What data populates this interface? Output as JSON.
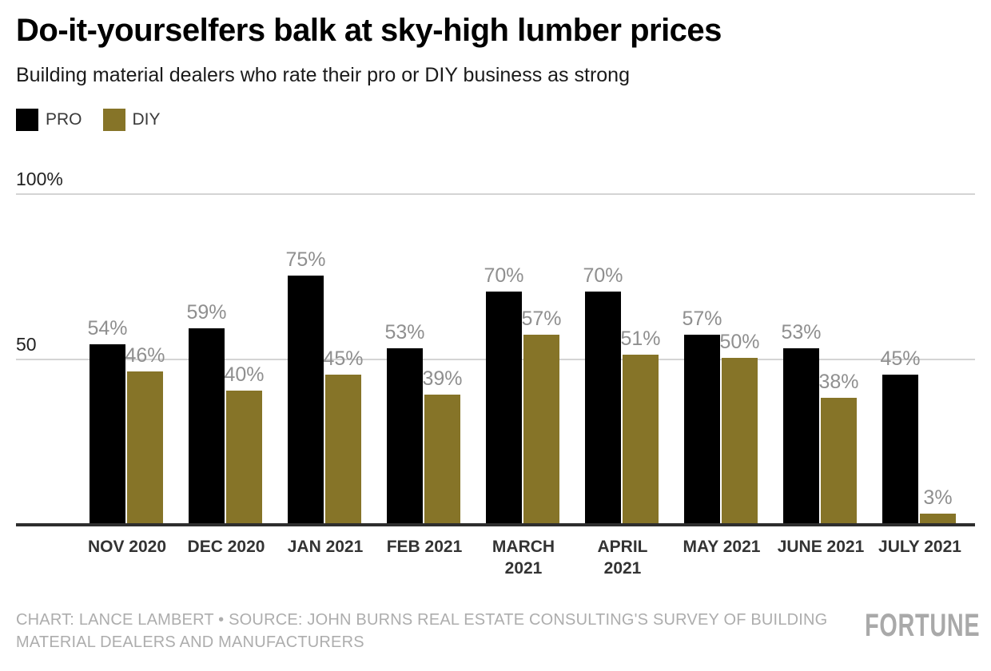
{
  "chart_data": {
    "type": "bar",
    "title": "Do-it-yourselfers balk at sky-high lumber prices",
    "subtitle": "Building material dealers who rate their pro or DIY business as strong",
    "categories": [
      "NOV 2020",
      "DEC 2020",
      "JAN 2021",
      "FEB 2021",
      "MARCH 2021",
      "APRIL 2021",
      "MAY 2021",
      "JUNE 2021",
      "JULY 2021"
    ],
    "tick_labels": [
      "NOV 2020",
      "DEC 2020",
      "JAN 2021",
      "FEB 2021",
      "MARCH\n2021",
      "APRIL\n2021",
      "MAY 2021",
      "JUNE 2021",
      "JULY 2021"
    ],
    "series": [
      {
        "name": "PRO",
        "color": "#000000",
        "values": [
          54,
          59,
          75,
          53,
          70,
          70,
          57,
          53,
          45
        ]
      },
      {
        "name": "DIY",
        "color": "#867428",
        "values": [
          46,
          40,
          45,
          39,
          57,
          51,
          50,
          38,
          3
        ]
      }
    ],
    "value_suffix": "%",
    "ylim": [
      0,
      100
    ],
    "y_ticks": [
      {
        "value": 100,
        "label": "100%"
      },
      {
        "value": 50,
        "label": "50"
      }
    ],
    "grid": true,
    "legend_position": "top-left",
    "colors": {
      "pro": "#000000",
      "diy": "#867428",
      "gridline": "#d4d4d4",
      "baseline": "#2e2e2e",
      "value_label": "#8f8f8f",
      "tick_label": "#333333"
    }
  },
  "footer": {
    "credit": "CHART: LANCE LAMBERT • SOURCE: JOHN BURNS REAL ESTATE CONSULTING'S SURVEY OF BUILDING\nMATERIAL DEALERS AND MANUFACTURERS",
    "logo": "FORTUNE"
  }
}
